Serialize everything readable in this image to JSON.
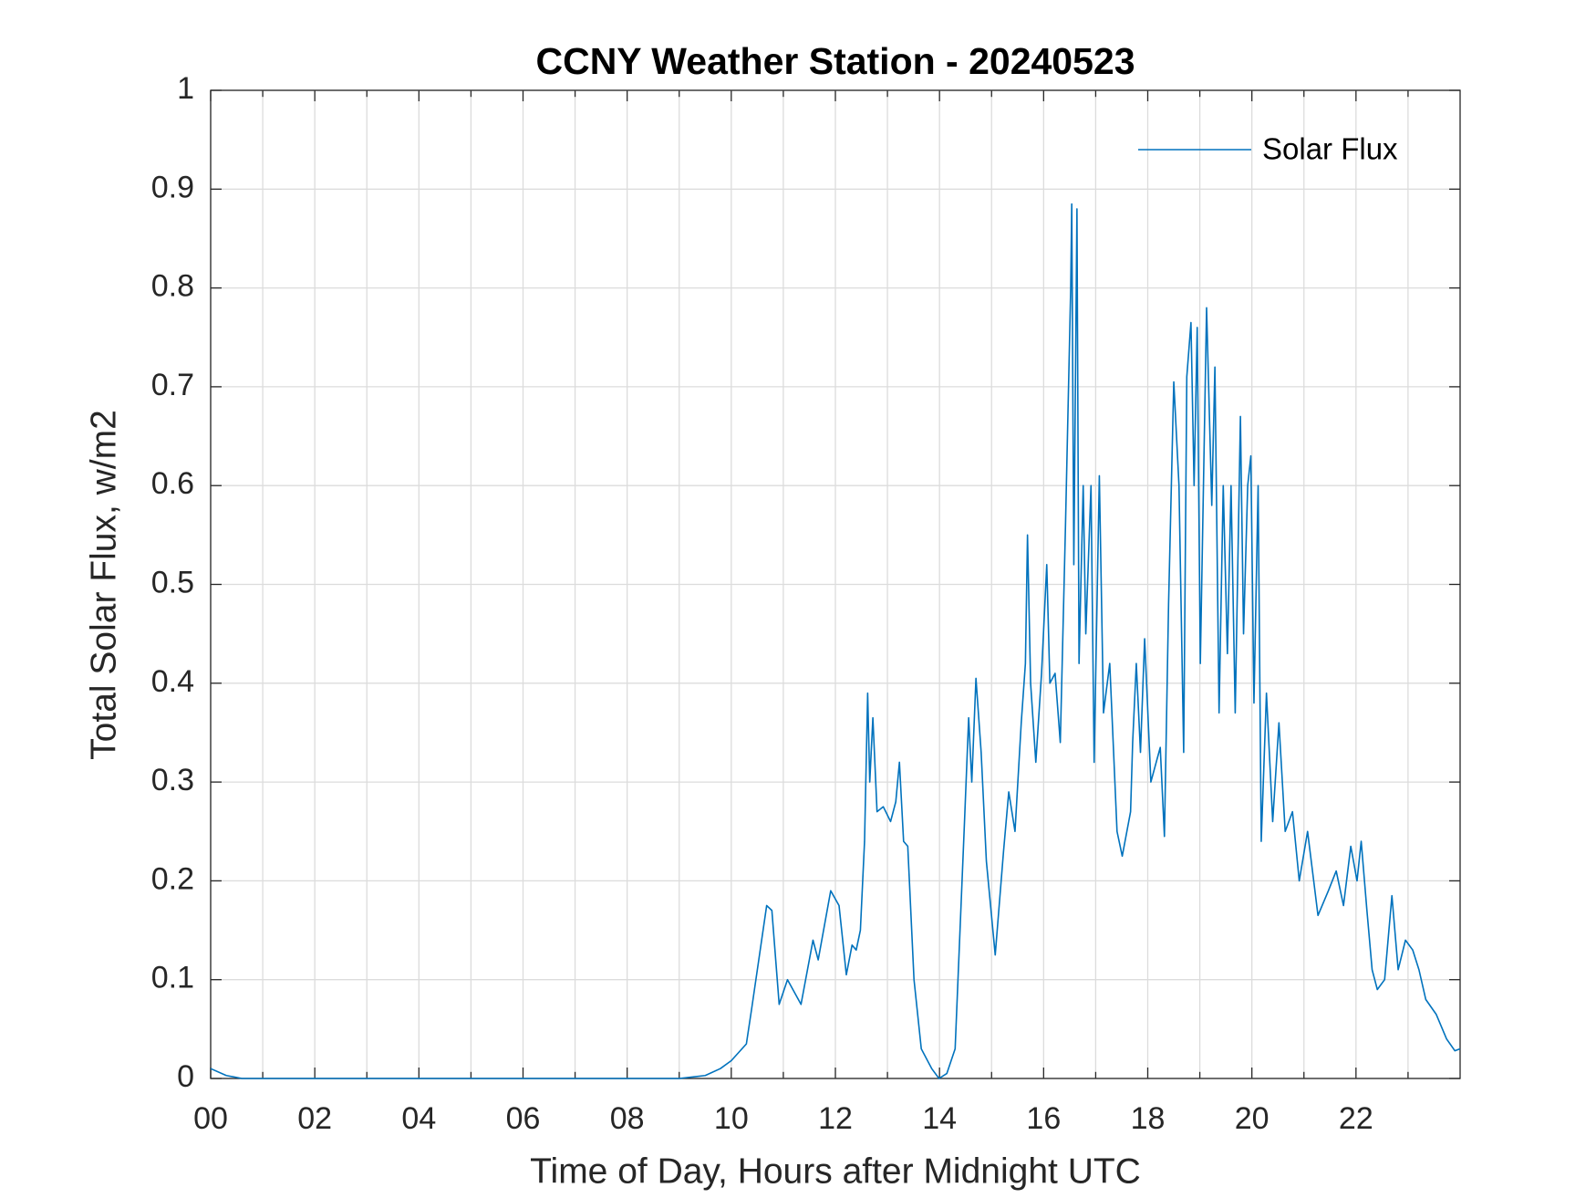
{
  "chart_data": {
    "type": "line",
    "title": "CCNY Weather Station - 20240523",
    "xlabel": "Time of Day, Hours after Midnight UTC",
    "ylabel": "Total Solar Flux, w/m2",
    "x": [
      0,
      0.3,
      0.6,
      9.0,
      9.5,
      9.79,
      10.0,
      10.29,
      10.39,
      10.68,
      10.78,
      10.92,
      11.08,
      11.34,
      11.57,
      11.67,
      11.91,
      12.07,
      12.21,
      12.32,
      12.4,
      12.48,
      12.56,
      12.62,
      12.66,
      12.72,
      12.8,
      12.92,
      13.06,
      13.16,
      13.23,
      13.31,
      13.39,
      13.51,
      13.65,
      13.85,
      13.99,
      14.14,
      14.3,
      14.48,
      14.56,
      14.62,
      14.7,
      14.8,
      14.9,
      15.07,
      15.23,
      15.33,
      15.45,
      15.57,
      15.65,
      15.69,
      15.75,
      15.85,
      15.96,
      16.06,
      16.12,
      16.22,
      16.32,
      16.42,
      16.52,
      16.54,
      16.58,
      16.64,
      16.68,
      16.76,
      16.81,
      16.91,
      16.97,
      17.07,
      17.15,
      17.27,
      17.41,
      17.51,
      17.67,
      17.71,
      17.78,
      17.86,
      17.94,
      18.06,
      18.24,
      18.32,
      18.4,
      18.5,
      18.6,
      18.69,
      18.75,
      18.83,
      18.89,
      18.95,
      19.01,
      19.13,
      19.23,
      19.29,
      19.37,
      19.45,
      19.53,
      19.6,
      19.68,
      19.78,
      19.84,
      19.92,
      19.98,
      20.04,
      20.12,
      20.18,
      20.28,
      20.4,
      20.52,
      20.64,
      20.78,
      20.91,
      21.07,
      21.27,
      21.47,
      21.62,
      21.76,
      21.9,
      22.02,
      22.1,
      22.21,
      22.31,
      22.41,
      22.55,
      22.69,
      22.81,
      22.95,
      23.09,
      23.21,
      23.34,
      23.54,
      23.74,
      23.9,
      24.0
    ],
    "series": [
      {
        "name": "Solar Flux",
        "color": "#0072bd",
        "values": [
          0.01,
          0.003,
          0,
          0,
          0.003,
          0.01,
          0.018,
          0.035,
          0.07,
          0.175,
          0.17,
          0.075,
          0.1,
          0.075,
          0.14,
          0.12,
          0.19,
          0.175,
          0.105,
          0.135,
          0.13,
          0.15,
          0.24,
          0.39,
          0.3,
          0.365,
          0.27,
          0.275,
          0.26,
          0.28,
          0.32,
          0.24,
          0.235,
          0.1,
          0.03,
          0.01,
          0,
          0.005,
          0.03,
          0.26,
          0.365,
          0.3,
          0.405,
          0.33,
          0.22,
          0.125,
          0.23,
          0.29,
          0.25,
          0.36,
          0.42,
          0.55,
          0.4,
          0.32,
          0.41,
          0.52,
          0.4,
          0.41,
          0.34,
          0.56,
          0.8,
          0.885,
          0.52,
          0.88,
          0.42,
          0.6,
          0.45,
          0.6,
          0.32,
          0.61,
          0.37,
          0.42,
          0.25,
          0.225,
          0.27,
          0.34,
          0.42,
          0.33,
          0.445,
          0.3,
          0.335,
          0.245,
          0.48,
          0.705,
          0.6,
          0.33,
          0.71,
          0.765,
          0.6,
          0.76,
          0.42,
          0.78,
          0.58,
          0.72,
          0.37,
          0.6,
          0.43,
          0.6,
          0.37,
          0.67,
          0.45,
          0.6,
          0.63,
          0.38,
          0.6,
          0.24,
          0.39,
          0.26,
          0.36,
          0.25,
          0.27,
          0.2,
          0.25,
          0.165,
          0.19,
          0.21,
          0.175,
          0.235,
          0.2,
          0.24,
          0.17,
          0.11,
          0.09,
          0.1,
          0.185,
          0.11,
          0.14,
          0.13,
          0.11,
          0.08,
          0.065,
          0.04,
          0.028,
          0.03
        ]
      }
    ],
    "xlim": [
      0,
      24
    ],
    "xticks": [
      {
        "value": 0,
        "label": "00"
      },
      {
        "value": 2,
        "label": "02"
      },
      {
        "value": 4,
        "label": "04"
      },
      {
        "value": 6,
        "label": "06"
      },
      {
        "value": 8,
        "label": "08"
      },
      10,
      12,
      14,
      16,
      18,
      20,
      22
    ],
    "ylim": [
      0,
      1
    ],
    "yticks": [
      0,
      0.1,
      0.2,
      0.3,
      0.4,
      0.5,
      0.6,
      0.7,
      0.8,
      0.9,
      1
    ],
    "grid": true,
    "x_minor_grid": true,
    "legend": "top-right"
  }
}
